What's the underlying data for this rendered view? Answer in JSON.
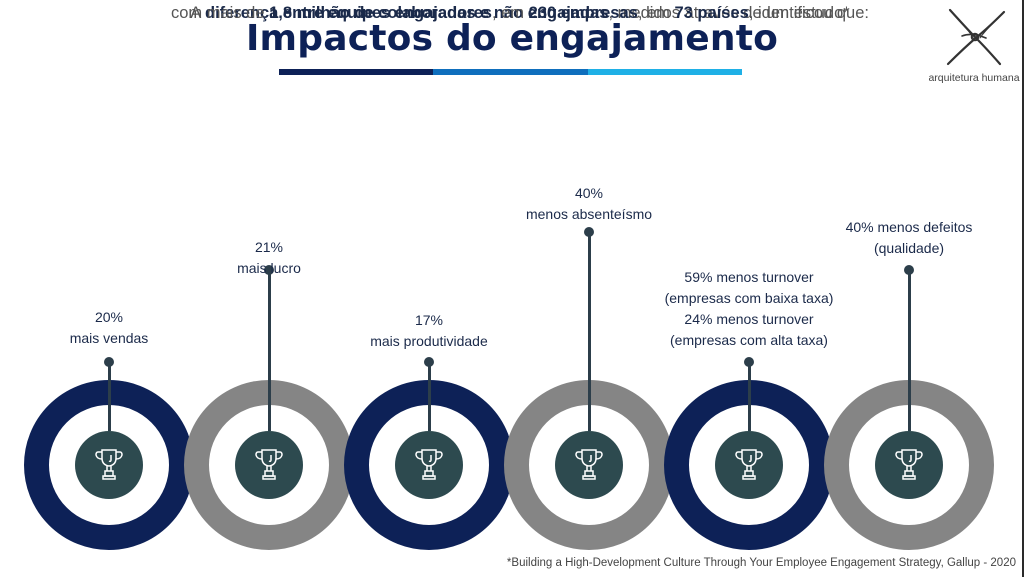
{
  "header": {
    "title": "Impactos do engajamento",
    "title_bar_colors": [
      "#0d2157",
      "#0f6fbd",
      "#1fb0e6"
    ],
    "logo_text": "arquitetura humana"
  },
  "intro": {
    "line1": [
      {
        "text": "A ",
        "bold": false
      },
      {
        "text": "diferença entre equipes engajadas e não engajadas",
        "bold": true
      },
      {
        "text": ", medidos através de um estudo*",
        "bold": false
      }
    ],
    "line2": [
      {
        "text": "com mais de ",
        "bold": false
      },
      {
        "text": "1,8 milhão de colaboradores",
        "bold": true
      },
      {
        "text": ", em ",
        "bold": false
      },
      {
        "text": "230 empresas",
        "bold": true
      },
      {
        "text": ", em ",
        "bold": false
      },
      {
        "text": "73 países",
        "bold": true
      },
      {
        "text": ", identificou que:",
        "bold": false
      }
    ]
  },
  "impacts": [
    {
      "lines": [
        "20%",
        "mais vendas"
      ],
      "ring_color": "#0d2157",
      "icon": "trophy-icon"
    },
    {
      "lines": [
        "21%",
        "mais lucro"
      ],
      "ring_color": "#858585",
      "icon": "trophy-icon"
    },
    {
      "lines": [
        "17%",
        "mais produtividade"
      ],
      "ring_color": "#0d2157",
      "icon": "trophy-icon"
    },
    {
      "lines": [
        "40%",
        "menos absenteísmo"
      ],
      "ring_color": "#858585",
      "icon": "trophy-icon"
    },
    {
      "lines": [
        "59% menos turnover",
        "(empresas com baixa taxa)",
        "24% menos turnover",
        "(empresas com alta taxa)"
      ],
      "ring_color": "#0d2157",
      "icon": "trophy-icon"
    },
    {
      "lines": [
        "40% menos defeitos",
        "(qualidade)"
      ],
      "ring_color": "#858585",
      "icon": "trophy-icon"
    }
  ],
  "colors": {
    "center_circle": "#2d4a4f",
    "stem": "#2c3e4a"
  },
  "footnote": "*Building a High-Development Culture Through Your Employee Engagement Strategy, Gallup - 2020"
}
